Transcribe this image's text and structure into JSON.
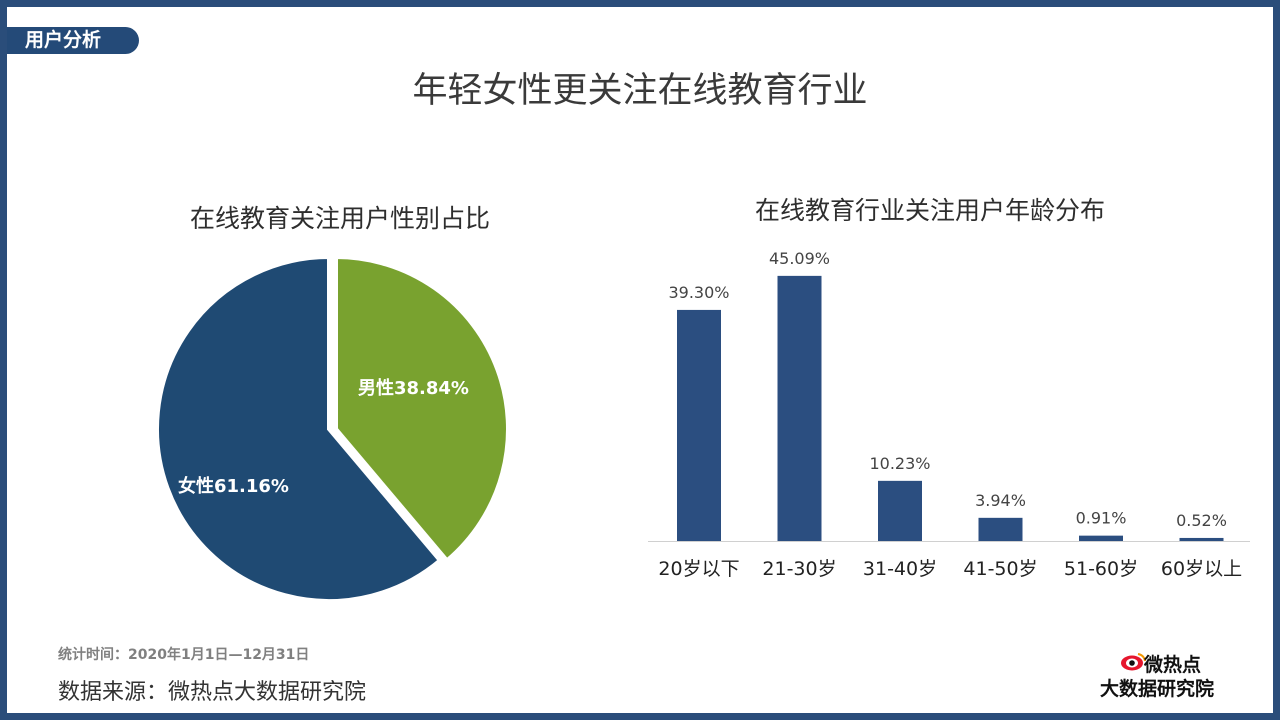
{
  "section_tag": "用户分析",
  "main_title": "年轻女性更关注在线教育行业",
  "footer": {
    "period": "统计时间：2020年1月1日—12月31日",
    "source": "数据来源：微热点大数据研究院"
  },
  "logo": {
    "line1": "微热点",
    "line2": "大数据研究院",
    "icon": "weibo-eye-icon"
  },
  "colors": {
    "navy": "#1f4a73",
    "green": "#79a22f",
    "bar": "#2b4e80",
    "frame": "#2a4d7a"
  },
  "chart_data": [
    {
      "type": "pie",
      "title": "在线教育关注用户性别占比",
      "slices": [
        {
          "label": "男性38.84%",
          "value": 38.84,
          "color": "#79a22f"
        },
        {
          "label": "女性61.16%",
          "value": 61.16,
          "color": "#1f4a73"
        }
      ]
    },
    {
      "type": "bar",
      "title": "在线教育行业关注用户年龄分布",
      "categories": [
        "20岁以下",
        "21-30岁",
        "31-40岁",
        "41-50岁",
        "51-60岁",
        "60岁以上"
      ],
      "values": [
        39.3,
        45.09,
        10.23,
        3.94,
        0.91,
        0.52
      ],
      "value_labels": [
        "39.30%",
        "45.09%",
        "10.23%",
        "3.94%",
        "0.91%",
        "0.52%"
      ],
      "ylim": [
        0,
        50
      ],
      "grid": false
    }
  ]
}
